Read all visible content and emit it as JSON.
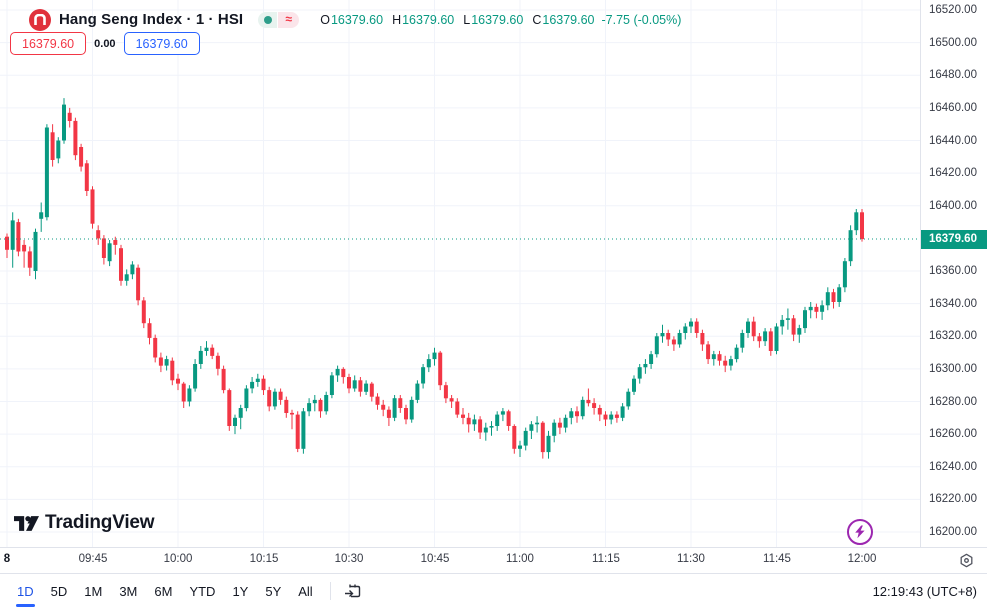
{
  "legend": {
    "title": "Hang Seng Index · 1 · HSI",
    "o_label": "O",
    "h_label": "H",
    "l_label": "L",
    "c_label": "C",
    "open": "16379.60",
    "high": "16379.60",
    "low": "16379.60",
    "close": "16379.60",
    "change": "-7.75 (-0.05%)"
  },
  "trade": {
    "sell": "16379.60",
    "spread": "0.00",
    "buy": "16379.60"
  },
  "axis": {
    "last_price": "16379.60",
    "price_labels": [
      "16520.00",
      "16500.00",
      "16480.00",
      "16460.00",
      "16440.00",
      "16420.00",
      "16400.00",
      "16360.00",
      "16340.00",
      "16320.00",
      "16300.00",
      "16280.00",
      "16260.00",
      "16240.00",
      "16220.00",
      "16200.00"
    ],
    "time_labels": [
      {
        "label": "8",
        "minute": 0,
        "bold": true
      },
      {
        "label": "09:45",
        "minute": 15
      },
      {
        "label": "10:00",
        "minute": 30
      },
      {
        "label": "10:15",
        "minute": 45
      },
      {
        "label": "10:30",
        "minute": 60
      },
      {
        "label": "10:45",
        "minute": 75
      },
      {
        "label": "11:00",
        "minute": 90
      },
      {
        "label": "11:15",
        "minute": 105
      },
      {
        "label": "11:30",
        "minute": 120
      },
      {
        "label": "11:45",
        "minute": 135
      },
      {
        "label": "12:00",
        "minute": 150
      }
    ]
  },
  "toolbar": {
    "ranges": [
      "1D",
      "5D",
      "1M",
      "3M",
      "6M",
      "YTD",
      "1Y",
      "5Y",
      "All"
    ],
    "active": "1D",
    "clock": "12:19:43 (UTC+8)"
  },
  "branding": {
    "logo_text": "TradingView"
  },
  "colors": {
    "up": "#089981",
    "down": "#F23645",
    "accent_blue": "#2962FF",
    "badge_bg": "#089981",
    "grid": "#F0F3FA",
    "flash_purple": "#9C27B0",
    "logo_red": "#E0313C",
    "text": "#131722"
  },
  "chart_data": {
    "type": "candlestick",
    "title": "Hang Seng Index",
    "symbol": "HSI",
    "interval": "1 minute",
    "last_price": 16379.6,
    "change": -7.75,
    "change_pct": -0.05,
    "session_high": 16466,
    "session_low": 16245,
    "y_axis": {
      "min": 16200,
      "max": 16520,
      "step": 20
    },
    "x_ticks": [
      "09:45",
      "10:00",
      "10:15",
      "10:30",
      "10:45",
      "11:00",
      "11:15",
      "11:30",
      "11:45",
      "12:00"
    ],
    "candles": [
      [
        "09:30",
        16381,
        16383,
        16368,
        16373
      ],
      [
        "09:31",
        16373,
        16396,
        16362,
        16391
      ],
      [
        "09:32",
        16390,
        16392,
        16369,
        16372
      ],
      [
        "09:33",
        16376,
        16379,
        16362,
        16372
      ],
      [
        "09:34",
        16372,
        16375,
        16357,
        16362
      ],
      [
        "09:35",
        16360,
        16386,
        16355,
        16384
      ],
      [
        "09:36",
        16392,
        16402,
        16384,
        16396
      ],
      [
        "09:37",
        16393,
        16450,
        16391,
        16448
      ],
      [
        "09:38",
        16445,
        16450,
        16424,
        16428
      ],
      [
        "09:39",
        16429,
        16442,
        16426,
        16440
      ],
      [
        "09:40",
        16440,
        16466,
        16438,
        16462
      ],
      [
        "09:41",
        16457,
        16460,
        16448,
        16452
      ],
      [
        "09:42",
        16452,
        16454,
        16428,
        16431
      ],
      [
        "09:43",
        16436,
        16438,
        16421,
        16424
      ],
      [
        "09:44",
        16426,
        16428,
        16406,
        16409
      ],
      [
        "09:45",
        16410,
        16412,
        16386,
        16389
      ],
      [
        "09:46",
        16385,
        16388,
        16376,
        16380
      ],
      [
        "09:47",
        16380,
        16382,
        16364,
        16368
      ],
      [
        "09:48",
        16366,
        16379,
        16363,
        16377
      ],
      [
        "09:49",
        16379,
        16381,
        16370,
        16376
      ],
      [
        "09:50",
        16374,
        16376,
        16351,
        16354
      ],
      [
        "09:51",
        16354,
        16361,
        16351,
        16358
      ],
      [
        "09:52",
        16358,
        16366,
        16355,
        16364
      ],
      [
        "09:53",
        16362,
        16364,
        16339,
        16342
      ],
      [
        "09:54",
        16342,
        16344,
        16325,
        16328
      ],
      [
        "09:55",
        16328,
        16331,
        16315,
        16319
      ],
      [
        "09:56",
        16319,
        16321,
        16304,
        16307
      ],
      [
        "09:57",
        16307,
        16310,
        16298,
        16302
      ],
      [
        "09:58",
        16302,
        16308,
        16299,
        16306
      ],
      [
        "09:59",
        16305,
        16307,
        16290,
        16293
      ],
      [
        "10:00",
        16294,
        16297,
        16287,
        16291
      ],
      [
        "10:01",
        16291,
        16292,
        16276,
        16280
      ],
      [
        "10:02",
        16280,
        16290,
        16277,
        16288
      ],
      [
        "10:03",
        16288,
        16306,
        16286,
        16303
      ],
      [
        "10:04",
        16303,
        16314,
        16300,
        16311
      ],
      [
        "10:05",
        16311,
        16317,
        16308,
        16313
      ],
      [
        "10:06",
        16313,
        16315,
        16306,
        16308
      ],
      [
        "10:07",
        16308,
        16310,
        16296,
        16300
      ],
      [
        "10:08",
        16300,
        16302,
        16285,
        16287
      ],
      [
        "10:09",
        16287,
        16288,
        16262,
        16265
      ],
      [
        "10:10",
        16265,
        16272,
        16260,
        16270
      ],
      [
        "10:11",
        16270,
        16278,
        16263,
        16276
      ],
      [
        "10:12",
        16276,
        16290,
        16274,
        16288
      ],
      [
        "10:13",
        16288,
        16295,
        16285,
        16292
      ],
      [
        "10:14",
        16292,
        16297,
        16289,
        16294
      ],
      [
        "10:15",
        16294,
        16296,
        16284,
        16287
      ],
      [
        "10:16",
        16287,
        16289,
        16274,
        16277
      ],
      [
        "10:17",
        16277,
        16288,
        16275,
        16286
      ],
      [
        "10:18",
        16286,
        16288,
        16278,
        16281
      ],
      [
        "10:19",
        16281,
        16283,
        16270,
        16273
      ],
      [
        "10:20",
        16273,
        16275,
        16263,
        16272
      ],
      [
        "10:21",
        16272,
        16274,
        16249,
        16251
      ],
      [
        "10:22",
        16251,
        16276,
        16248,
        16274
      ],
      [
        "10:23",
        16274,
        16282,
        16271,
        16279
      ],
      [
        "10:24",
        16279,
        16284,
        16274,
        16281
      ],
      [
        "10:25",
        16281,
        16282,
        16270,
        16274
      ],
      [
        "10:26",
        16274,
        16286,
        16272,
        16284
      ],
      [
        "10:27",
        16284,
        16298,
        16282,
        16296
      ],
      [
        "10:28",
        16296,
        16302,
        16292,
        16300
      ],
      [
        "10:29",
        16300,
        16301,
        16291,
        16295
      ],
      [
        "10:30",
        16295,
        16297,
        16285,
        16288
      ],
      [
        "10:31",
        16288,
        16296,
        16286,
        16293
      ],
      [
        "10:32",
        16293,
        16295,
        16283,
        16286
      ],
      [
        "10:33",
        16286,
        16293,
        16284,
        16291
      ],
      [
        "10:34",
        16291,
        16292,
        16280,
        16283
      ],
      [
        "10:35",
        16283,
        16285,
        16275,
        16278
      ],
      [
        "10:36",
        16278,
        16281,
        16271,
        16275
      ],
      [
        "10:37",
        16275,
        16277,
        16265,
        16270
      ],
      [
        "10:38",
        16270,
        16284,
        16268,
        16282
      ],
      [
        "10:39",
        16282,
        16284,
        16273,
        16276
      ],
      [
        "10:40",
        16276,
        16278,
        16266,
        16269
      ],
      [
        "10:41",
        16269,
        16283,
        16267,
        16281
      ],
      [
        "10:42",
        16281,
        16293,
        16279,
        16291
      ],
      [
        "10:43",
        16291,
        16303,
        16288,
        16301
      ],
      [
        "10:44",
        16301,
        16309,
        16298,
        16306
      ],
      [
        "10:45",
        16306,
        16313,
        16302,
        16310
      ],
      [
        "10:46",
        16310,
        16311,
        16287,
        16290
      ],
      [
        "10:47",
        16290,
        16292,
        16279,
        16282
      ],
      [
        "10:48",
        16282,
        16284,
        16276,
        16280
      ],
      [
        "10:49",
        16280,
        16282,
        16270,
        16272
      ],
      [
        "10:50",
        16272,
        16276,
        16266,
        16270
      ],
      [
        "10:51",
        16270,
        16273,
        16261,
        16266
      ],
      [
        "10:52",
        16266,
        16272,
        16262,
        16269
      ],
      [
        "10:53",
        16269,
        16271,
        16257,
        16261
      ],
      [
        "10:54",
        16261,
        16267,
        16256,
        16264
      ],
      [
        "10:55",
        16264,
        16268,
        16259,
        16265
      ],
      [
        "10:56",
        16265,
        16274,
        16262,
        16272
      ],
      [
        "10:57",
        16272,
        16276,
        16268,
        16274
      ],
      [
        "10:58",
        16274,
        16275,
        16262,
        16265
      ],
      [
        "10:59",
        16265,
        16266,
        16248,
        16251
      ],
      [
        "11:00",
        16251,
        16256,
        16246,
        16253
      ],
      [
        "11:01",
        16253,
        16264,
        16250,
        16262
      ],
      [
        "11:02",
        16262,
        16268,
        16257,
        16266
      ],
      [
        "11:03",
        16266,
        16271,
        16261,
        16267
      ],
      [
        "11:04",
        16267,
        16268,
        16245,
        16249
      ],
      [
        "11:05",
        16249,
        16262,
        16245,
        16259
      ],
      [
        "11:06",
        16259,
        16269,
        16255,
        16267
      ],
      [
        "11:07",
        16267,
        16270,
        16260,
        16264
      ],
      [
        "11:08",
        16264,
        16272,
        16261,
        16270
      ],
      [
        "11:09",
        16270,
        16276,
        16266,
        16274
      ],
      [
        "11:10",
        16274,
        16277,
        16267,
        16271
      ],
      [
        "11:11",
        16271,
        16283,
        16269,
        16281
      ],
      [
        "11:12",
        16281,
        16288,
        16277,
        16279
      ],
      [
        "11:13",
        16279,
        16282,
        16272,
        16276
      ],
      [
        "11:14",
        16276,
        16278,
        16268,
        16272
      ],
      [
        "11:15",
        16272,
        16274,
        16265,
        16269
      ],
      [
        "11:16",
        16269,
        16274,
        16266,
        16272
      ],
      [
        "11:17",
        16272,
        16274,
        16267,
        16270
      ],
      [
        "11:18",
        16270,
        16279,
        16268,
        16277
      ],
      [
        "11:19",
        16277,
        16288,
        16275,
        16286
      ],
      [
        "11:20",
        16286,
        16296,
        16284,
        16294
      ],
      [
        "11:21",
        16294,
        16303,
        16291,
        16301
      ],
      [
        "11:22",
        16301,
        16306,
        16297,
        16303
      ],
      [
        "11:23",
        16303,
        16311,
        16300,
        16309
      ],
      [
        "11:24",
        16309,
        16322,
        16307,
        16320
      ],
      [
        "11:25",
        16320,
        16327,
        16316,
        16322
      ],
      [
        "11:26",
        16322,
        16324,
        16314,
        16318
      ],
      [
        "11:27",
        16318,
        16320,
        16311,
        16315
      ],
      [
        "11:28",
        16315,
        16324,
        16313,
        16322
      ],
      [
        "11:29",
        16322,
        16328,
        16318,
        16326
      ],
      [
        "11:30",
        16326,
        16331,
        16322,
        16329
      ],
      [
        "11:31",
        16329,
        16331,
        16319,
        16322
      ],
      [
        "11:32",
        16322,
        16324,
        16311,
        16315
      ],
      [
        "11:33",
        16315,
        16317,
        16303,
        16306
      ],
      [
        "11:34",
        16306,
        16311,
        16302,
        16309
      ],
      [
        "11:35",
        16309,
        16311,
        16302,
        16305
      ],
      [
        "11:36",
        16305,
        16308,
        16298,
        16302
      ],
      [
        "11:37",
        16302,
        16308,
        16299,
        16306
      ],
      [
        "11:38",
        16306,
        16315,
        16304,
        16313
      ],
      [
        "11:39",
        16313,
        16324,
        16310,
        16322
      ],
      [
        "11:40",
        16322,
        16331,
        16319,
        16329
      ],
      [
        "11:41",
        16329,
        16332,
        16317,
        16320
      ],
      [
        "11:42",
        16320,
        16322,
        16313,
        16317
      ],
      [
        "11:43",
        16317,
        16325,
        16314,
        16323
      ],
      [
        "11:44",
        16323,
        16325,
        16308,
        16311
      ],
      [
        "11:45",
        16311,
        16328,
        16309,
        16326
      ],
      [
        "11:46",
        16326,
        16333,
        16321,
        16330
      ],
      [
        "11:47",
        16330,
        16337,
        16324,
        16331
      ],
      [
        "11:48",
        16331,
        16333,
        16317,
        16321
      ],
      [
        "11:49",
        16321,
        16327,
        16316,
        16325
      ],
      [
        "11:50",
        16325,
        16338,
        16322,
        16336
      ],
      [
        "11:51",
        16336,
        16341,
        16331,
        16338
      ],
      [
        "11:52",
        16338,
        16340,
        16331,
        16335
      ],
      [
        "11:53",
        16335,
        16342,
        16330,
        16339
      ],
      [
        "11:54",
        16339,
        16350,
        16336,
        16347
      ],
      [
        "11:55",
        16347,
        16349,
        16337,
        16341
      ],
      [
        "11:56",
        16341,
        16352,
        16338,
        16350
      ],
      [
        "11:57",
        16350,
        16368,
        16347,
        16366
      ],
      [
        "11:58",
        16366,
        16388,
        16363,
        16385
      ],
      [
        "11:59",
        16385,
        16398,
        16382,
        16396
      ],
      [
        "12:00",
        16396,
        16398,
        16378,
        16379.6
      ]
    ]
  }
}
